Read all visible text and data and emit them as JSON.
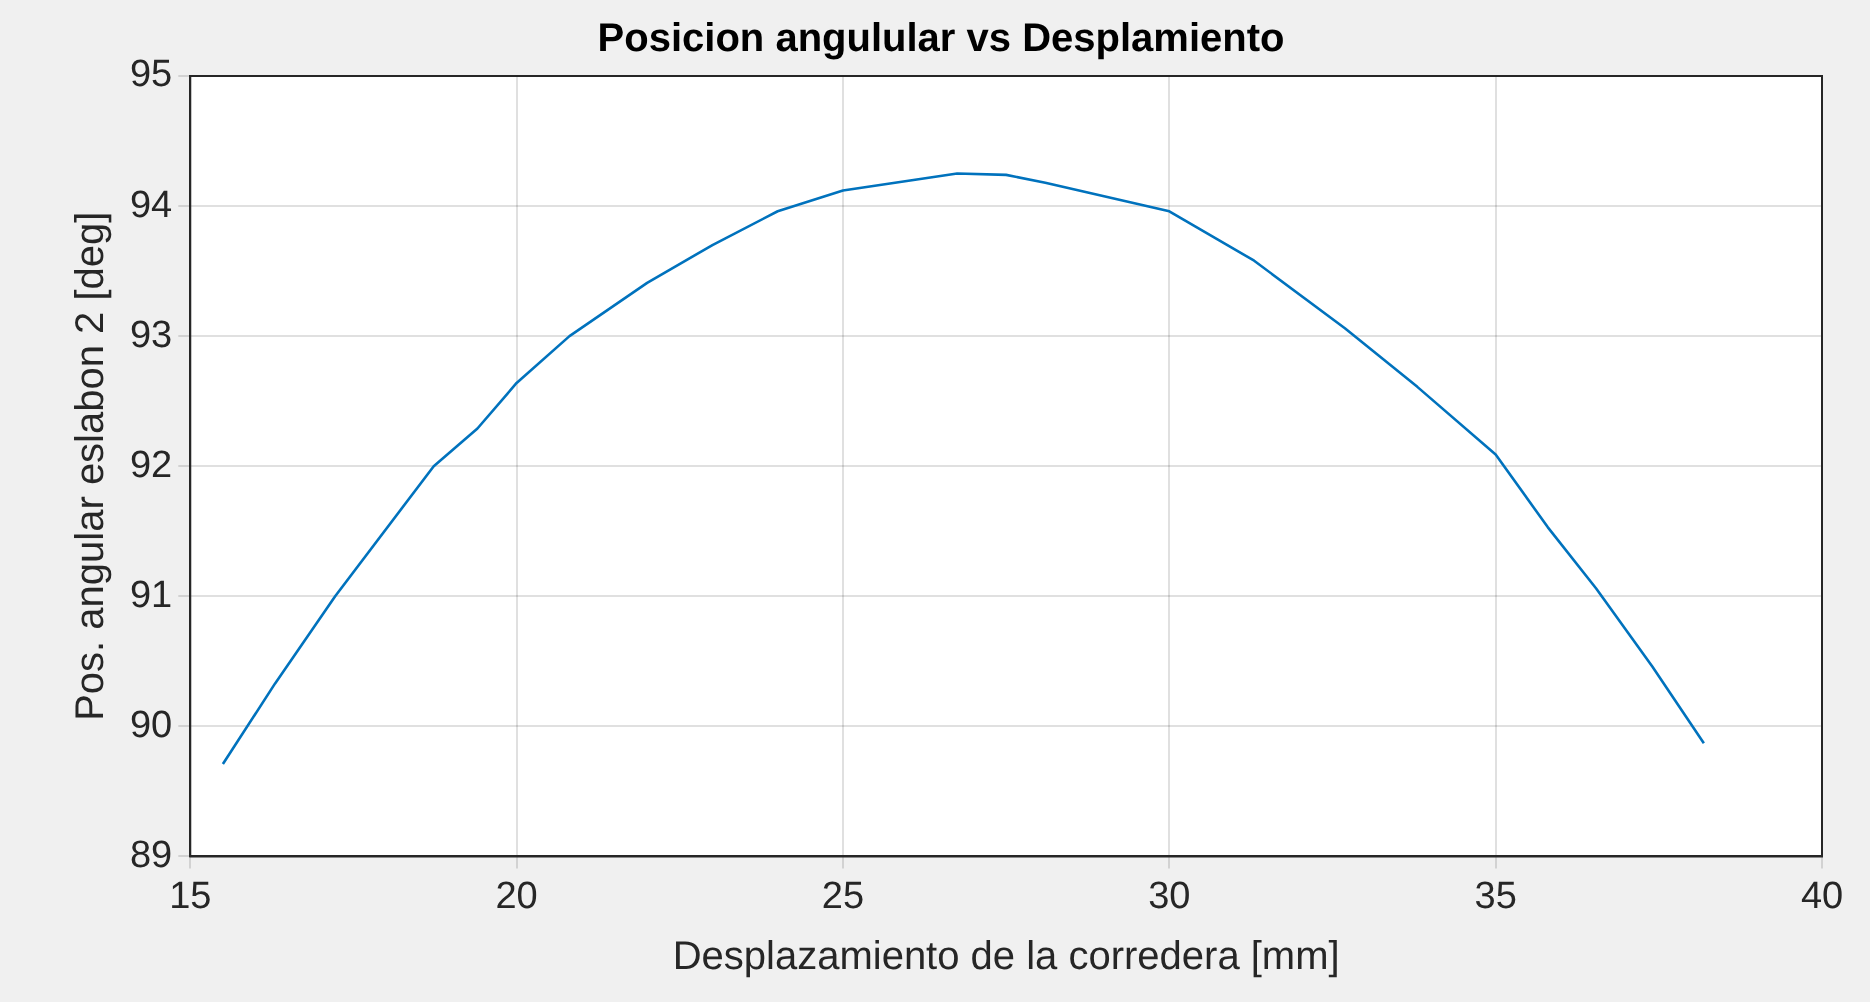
{
  "chart_data": {
    "type": "line",
    "title": "Posicion angulular vs Desplamiento",
    "xlabel": "Desplazamiento de la corredera [mm]",
    "ylabel": "Pos. angular eslabon 2 [deg]",
    "series": [
      {
        "color": "#0072bd",
        "x": [
          15.5,
          16.3,
          17.22,
          18.73,
          19.4,
          20,
          20.81,
          22,
          23.0,
          24,
          25,
          26.75,
          27.5,
          28.1,
          30,
          31.3,
          32.69,
          33.8,
          35,
          35.8,
          36.54,
          37.4,
          38.19
        ],
        "values": [
          89.71,
          90.33,
          91.0,
          92.0,
          92.29,
          92.64,
          93.0,
          93.41,
          93.7,
          93.96,
          94.12,
          94.25,
          94.24,
          94.18,
          93.96,
          93.58,
          93.06,
          92.61,
          92.09,
          91.53,
          91.06,
          90.46,
          89.87
        ]
      }
    ],
    "xlim": [
      15,
      40
    ],
    "xticks": [
      15,
      20,
      25,
      30,
      35,
      40
    ],
    "ylim": [
      89,
      95
    ],
    "yticks": [
      89,
      90,
      91,
      92,
      93,
      94,
      95
    ],
    "grid": true,
    "marker": "none",
    "line_style": "solid"
  }
}
